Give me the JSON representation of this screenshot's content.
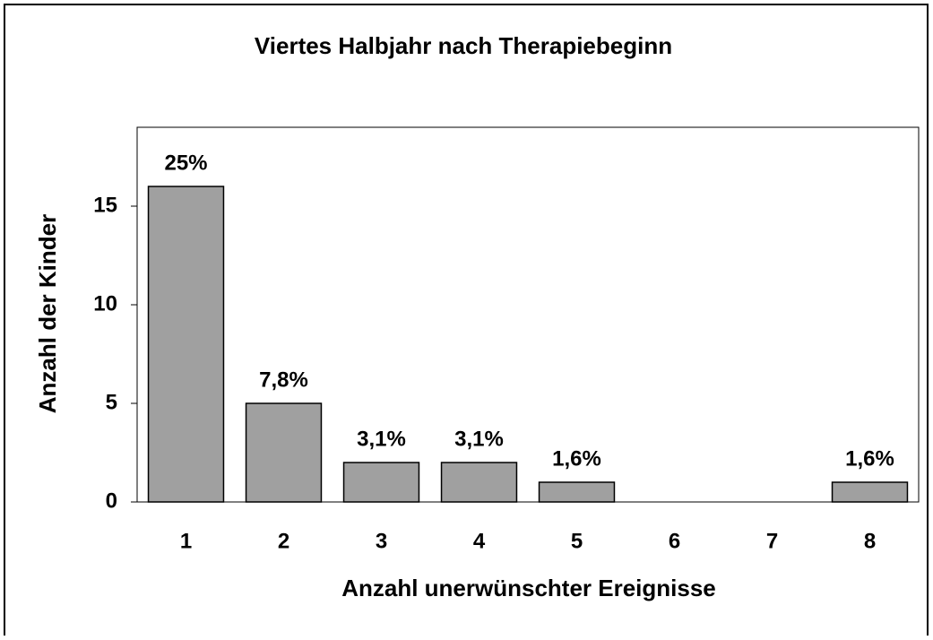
{
  "chart_data": {
    "type": "bar",
    "title": "Viertes Halbjahr nach Therapiebeginn",
    "x_label": "Anzahl unerwünschter Ereignisse",
    "y_label": "Anzahl der Kinder",
    "categories": [
      "1",
      "2",
      "3",
      "4",
      "5",
      "6",
      "7",
      "8"
    ],
    "values": [
      16,
      5,
      2,
      2,
      1,
      0,
      0,
      1
    ],
    "value_labels": [
      "25%",
      "7,8%",
      "3,1%",
      "3,1%",
      "1,6%",
      null,
      null,
      "1,6%"
    ],
    "color": "#a0a0a0",
    "ylim": [
      0,
      19
    ],
    "yticks": [
      0,
      5,
      10,
      15
    ],
    "grid": false
  }
}
